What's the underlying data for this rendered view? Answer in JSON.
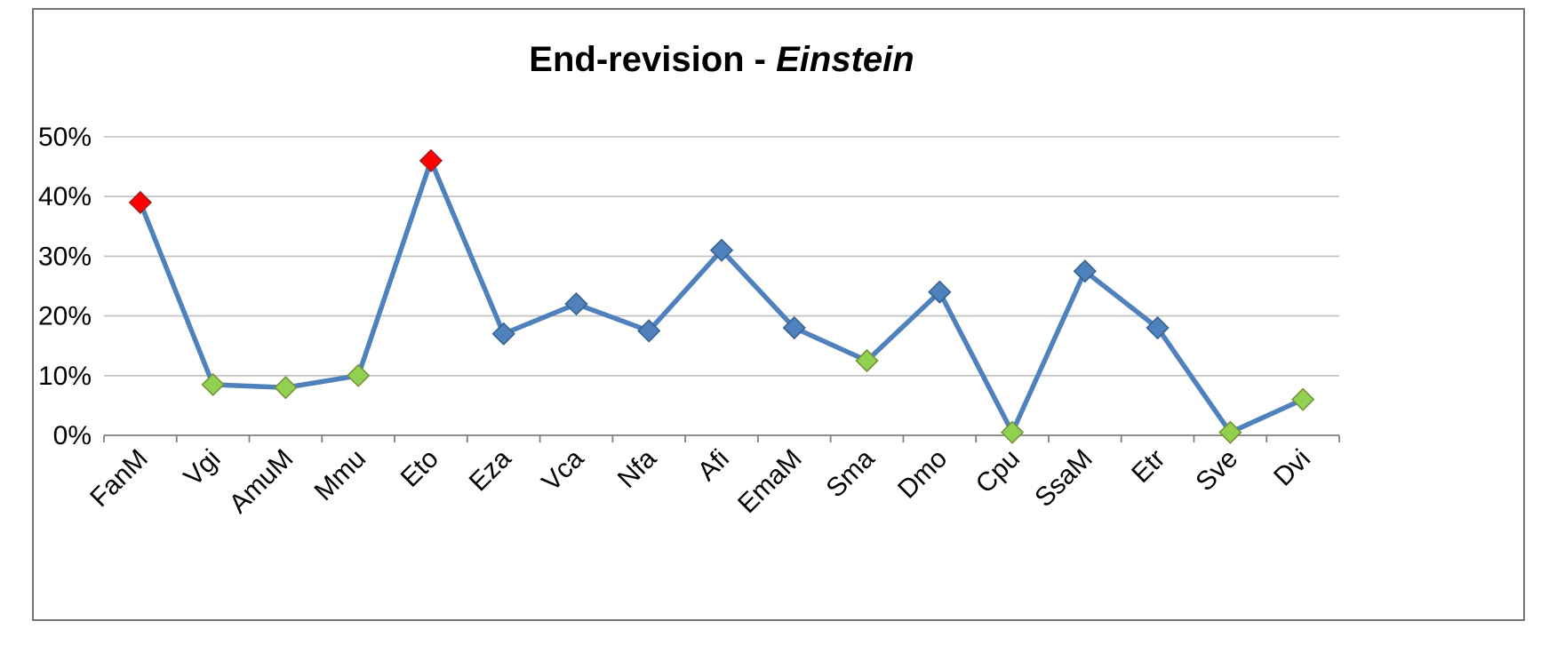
{
  "chart": {
    "title_prefix": "End-revision - ",
    "title_emphasis": "Einstein"
  },
  "chart_data": {
    "type": "line",
    "title": "End-revision - Einstein",
    "xlabel": "",
    "ylabel": "",
    "categories": [
      "FanM",
      "Vgi",
      "AmuM",
      "Mmu",
      "Eto",
      "Eza",
      "Vca",
      "Nfa",
      "Afi",
      "EmaM",
      "Sma",
      "Dmo",
      "Cpu",
      "SsaM",
      "Etr",
      "Sve",
      "Dvi"
    ],
    "values": [
      39,
      8.5,
      8,
      10,
      46,
      17,
      22,
      17.5,
      31,
      18,
      12.5,
      24,
      0.5,
      27.5,
      18,
      0.5,
      6
    ],
    "point_colors": [
      "red",
      "green",
      "green",
      "green",
      "red",
      "blue",
      "blue",
      "blue",
      "blue",
      "blue",
      "green",
      "blue",
      "green",
      "blue",
      "blue",
      "green",
      "green"
    ],
    "ylim": [
      0,
      50
    ],
    "yticks": [
      0,
      10,
      20,
      30,
      40,
      50
    ],
    "ytick_labels": [
      "0%",
      "10%",
      "20%",
      "30%",
      "40%",
      "50%"
    ],
    "grid": true,
    "legend": "none",
    "marker_shape": "diamond",
    "colors": {
      "line": "#4F81BD",
      "marker_blue_fill": "#4F81BD",
      "marker_blue_stroke": "#38618F",
      "marker_red_fill": "#FF0000",
      "marker_red_stroke": "#A61C1C",
      "marker_green_fill": "#92D050",
      "marker_green_stroke": "#76933C",
      "gridline": "#BFBFBF",
      "axis": "#7F7F7F",
      "text": "#000000"
    }
  }
}
